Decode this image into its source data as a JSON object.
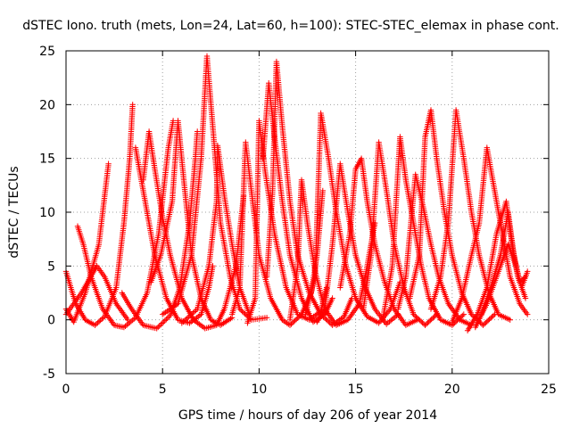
{
  "chart_data": {
    "type": "scatter",
    "title": "dSTEC Iono. truth (mets, Lon=24, Lat=60, h=100): STEC-STEC_elemax in phase cont.",
    "xlabel": "GPS time / hours of day 206 of year 2014",
    "ylabel": "dSTEC  / TECUs",
    "xlim": [
      0,
      25
    ],
    "ylim": [
      -5,
      25
    ],
    "xticks": [
      0,
      5,
      10,
      15,
      20,
      25
    ],
    "yticks": [
      -5,
      0,
      5,
      10,
      15,
      20,
      25
    ],
    "grid": true,
    "marker": "+",
    "colors": {
      "series": "#ff0000",
      "grid": "#a0a0a0",
      "axes": "#000000"
    },
    "series": [
      {
        "values": [
          [
            0.0,
            4.5
          ],
          [
            0.5,
            1.5
          ],
          [
            1.0,
            0.0
          ],
          [
            1.5,
            -0.5
          ],
          [
            2.0,
            0.3
          ],
          [
            2.6,
            3.0
          ],
          [
            3.0,
            9.0
          ],
          [
            3.3,
            15.0
          ],
          [
            3.45,
            20.0
          ]
        ]
      },
      {
        "values": [
          [
            0.0,
            1.0
          ],
          [
            0.4,
            -0.2
          ],
          [
            1.0,
            2.5
          ],
          [
            1.7,
            7.0
          ],
          [
            2.2,
            14.5
          ]
        ]
      },
      {
        "values": [
          [
            0.6,
            8.7
          ],
          [
            0.9,
            7.0
          ],
          [
            1.3,
            4.0
          ],
          [
            1.9,
            1.0
          ],
          [
            2.5,
            -0.5
          ],
          [
            3.0,
            -0.7
          ],
          [
            3.6,
            0.2
          ],
          [
            4.2,
            2.5
          ],
          [
            4.8,
            8.0
          ],
          [
            5.3,
            16.0
          ],
          [
            5.55,
            18.5
          ]
        ]
      },
      {
        "values": [
          [
            0.0,
            0.5
          ],
          [
            0.8,
            2.5
          ],
          [
            1.6,
            5.0
          ],
          [
            2.0,
            4.0
          ],
          [
            2.6,
            1.5
          ],
          [
            3.2,
            0.0
          ]
        ]
      },
      {
        "values": [
          [
            3.6,
            16.0
          ],
          [
            4.0,
            12.0
          ],
          [
            4.6,
            6.0
          ],
          [
            5.2,
            2.0
          ],
          [
            5.8,
            0.0
          ],
          [
            6.4,
            -0.3
          ],
          [
            7.0,
            0.5
          ],
          [
            7.4,
            3.0
          ],
          [
            7.6,
            5.0
          ]
        ]
      },
      {
        "values": [
          [
            2.9,
            2.5
          ],
          [
            3.4,
            1.0
          ],
          [
            4.0,
            -0.5
          ],
          [
            4.7,
            -0.8
          ],
          [
            5.4,
            0.4
          ],
          [
            5.9,
            3.0
          ],
          [
            6.4,
            9.0
          ],
          [
            6.7,
            15.0
          ],
          [
            6.8,
            17.5
          ]
        ]
      },
      {
        "values": [
          [
            4.0,
            13.0
          ],
          [
            4.3,
            17.5
          ],
          [
            4.6,
            14.0
          ],
          [
            5.0,
            9.5
          ],
          [
            5.4,
            6.0
          ],
          [
            6.0,
            2.0
          ],
          [
            6.6,
            0.0
          ],
          [
            7.2,
            -0.8
          ],
          [
            7.8,
            -0.5
          ],
          [
            8.2,
            1.0
          ],
          [
            8.8,
            5.0
          ],
          [
            9.2,
            11.5
          ]
        ]
      },
      {
        "values": [
          [
            4.4,
            3.5
          ],
          [
            4.9,
            6.0
          ],
          [
            5.5,
            11.0
          ],
          [
            5.8,
            18.5
          ],
          [
            6.1,
            13.0
          ],
          [
            6.5,
            6.0
          ],
          [
            7.0,
            2.0
          ],
          [
            7.5,
            0.0
          ],
          [
            8.0,
            -0.5
          ],
          [
            8.6,
            0.2
          ]
        ]
      },
      {
        "values": [
          [
            5.0,
            0.5
          ],
          [
            5.8,
            1.5
          ],
          [
            6.5,
            6.0
          ],
          [
            7.0,
            15.0
          ],
          [
            7.3,
            24.5
          ],
          [
            7.6,
            18.0
          ],
          [
            8.0,
            9.0
          ],
          [
            8.5,
            4.0
          ],
          [
            9.0,
            1.0
          ],
          [
            9.6,
            0.0
          ],
          [
            10.4,
            0.2
          ]
        ]
      },
      {
        "values": [
          [
            6.0,
            -0.3
          ],
          [
            6.8,
            1.0
          ],
          [
            7.4,
            5.0
          ],
          [
            7.8,
            11.0
          ],
          [
            7.85,
            16.2
          ],
          [
            8.2,
            11.5
          ],
          [
            8.6,
            7.0
          ],
          [
            9.0,
            3.0
          ],
          [
            9.5,
            0.5
          ]
        ]
      },
      {
        "values": [
          [
            8.6,
            0.5
          ],
          [
            9.0,
            3.0
          ],
          [
            9.3,
            16.5
          ],
          [
            9.6,
            12.0
          ],
          [
            10.0,
            6.0
          ],
          [
            10.6,
            2.0
          ],
          [
            11.2,
            0.0
          ],
          [
            11.6,
            -0.5
          ],
          [
            12.2,
            0.5
          ],
          [
            12.7,
            2.5
          ],
          [
            13.0,
            6.0
          ],
          [
            13.3,
            12.0
          ]
        ]
      },
      {
        "values": [
          [
            9.4,
            -0.3
          ],
          [
            9.8,
            2.0
          ],
          [
            10.0,
            18.5
          ],
          [
            10.3,
            14.0
          ],
          [
            10.8,
            8.0
          ],
          [
            11.4,
            3.0
          ],
          [
            12.0,
            0.5
          ],
          [
            12.6,
            0.0
          ],
          [
            13.2,
            0.8
          ],
          [
            13.5,
            3.0
          ]
        ]
      },
      {
        "values": [
          [
            10.2,
            15.0
          ],
          [
            10.5,
            22.0
          ],
          [
            10.8,
            17.0
          ],
          [
            11.2,
            11.0
          ],
          [
            11.6,
            6.0
          ],
          [
            12.2,
            2.0
          ],
          [
            12.8,
            -0.2
          ],
          [
            13.4,
            0.5
          ],
          [
            13.8,
            2.0
          ]
        ]
      },
      {
        "values": [
          [
            10.4,
            4.0
          ],
          [
            10.7,
            12.0
          ],
          [
            10.9,
            24.0
          ],
          [
            11.2,
            18.0
          ],
          [
            11.6,
            11.0
          ],
          [
            12.0,
            6.0
          ],
          [
            12.6,
            2.5
          ],
          [
            13.2,
            0.5
          ],
          [
            13.8,
            -0.5
          ],
          [
            14.4,
            0.3
          ],
          [
            14.8,
            2.0
          ]
        ]
      },
      {
        "values": [
          [
            11.6,
            0.0
          ],
          [
            12.0,
            5.0
          ],
          [
            12.2,
            13.0
          ],
          [
            12.5,
            9.0
          ],
          [
            12.9,
            4.5
          ],
          [
            13.4,
            1.0
          ],
          [
            14.0,
            -0.5
          ],
          [
            14.6,
            0.0
          ],
          [
            15.2,
            1.5
          ],
          [
            15.6,
            5.0
          ],
          [
            16.0,
            9.0
          ]
        ]
      },
      {
        "values": [
          [
            12.4,
            0.5
          ],
          [
            12.9,
            4.0
          ],
          [
            13.2,
            19.2
          ],
          [
            13.6,
            15.0
          ],
          [
            14.0,
            10.0
          ],
          [
            14.5,
            5.0
          ],
          [
            15.0,
            2.0
          ],
          [
            15.6,
            0.3
          ],
          [
            16.2,
            -0.3
          ],
          [
            16.8,
            1.0
          ],
          [
            17.3,
            3.5
          ]
        ]
      },
      {
        "values": [
          [
            13.0,
            -0.2
          ],
          [
            13.4,
            1.0
          ],
          [
            13.8,
            7.0
          ],
          [
            14.2,
            14.5
          ],
          [
            14.6,
            10.0
          ],
          [
            15.0,
            6.0
          ],
          [
            15.5,
            3.0
          ],
          [
            16.0,
            1.0
          ],
          [
            16.6,
            -0.4
          ],
          [
            17.2,
            0.5
          ]
        ]
      },
      {
        "values": [
          [
            14.2,
            3.0
          ],
          [
            14.7,
            8.0
          ],
          [
            15.0,
            14.0
          ],
          [
            15.3,
            15.0
          ],
          [
            15.6,
            11.0
          ],
          [
            16.0,
            7.0
          ],
          [
            16.5,
            3.5
          ],
          [
            17.0,
            1.0
          ],
          [
            17.6,
            -0.5
          ],
          [
            18.2,
            0.0
          ]
        ]
      },
      {
        "values": [
          [
            15.4,
            1.0
          ],
          [
            15.8,
            6.0
          ],
          [
            16.2,
            16.5
          ],
          [
            16.6,
            12.0
          ],
          [
            17.0,
            7.0
          ],
          [
            17.5,
            3.0
          ],
          [
            18.0,
            0.5
          ],
          [
            18.6,
            -0.5
          ],
          [
            19.2,
            0.5
          ]
        ]
      },
      {
        "values": [
          [
            16.4,
            0.0
          ],
          [
            16.9,
            5.0
          ],
          [
            17.3,
            17.0
          ],
          [
            17.6,
            13.0
          ],
          [
            18.0,
            9.0
          ],
          [
            18.4,
            5.0
          ],
          [
            18.8,
            2.0
          ],
          [
            19.4,
            0.0
          ],
          [
            20.0,
            -0.5
          ],
          [
            20.6,
            0.5
          ]
        ]
      },
      {
        "values": [
          [
            17.2,
            1.0
          ],
          [
            17.6,
            4.0
          ],
          [
            18.1,
            13.5
          ],
          [
            18.5,
            10.5
          ],
          [
            18.9,
            7.0
          ],
          [
            19.3,
            4.0
          ],
          [
            19.8,
            1.5
          ],
          [
            20.4,
            0.0
          ],
          [
            21.0,
            -0.5
          ]
        ]
      },
      {
        "values": [
          [
            17.8,
            2.0
          ],
          [
            18.3,
            6.0
          ],
          [
            18.6,
            17.0
          ],
          [
            18.9,
            19.5
          ],
          [
            19.2,
            15.0
          ],
          [
            19.6,
            10.0
          ],
          [
            20.0,
            6.0
          ],
          [
            20.5,
            2.5
          ],
          [
            21.0,
            0.5
          ],
          [
            21.6,
            -0.5
          ],
          [
            22.2,
            0.5
          ]
        ]
      },
      {
        "values": [
          [
            18.9,
            1.0
          ],
          [
            19.4,
            4.0
          ],
          [
            19.8,
            9.0
          ],
          [
            20.2,
            19.5
          ],
          [
            20.6,
            15.0
          ],
          [
            21.0,
            10.0
          ],
          [
            21.4,
            6.0
          ],
          [
            21.9,
            2.5
          ],
          [
            22.4,
            0.5
          ],
          [
            23.0,
            0.0
          ]
        ]
      },
      {
        "values": [
          [
            20.0,
            -0.2
          ],
          [
            20.5,
            2.0
          ],
          [
            21.0,
            6.0
          ],
          [
            21.4,
            9.0
          ],
          [
            21.8,
            16.0
          ],
          [
            22.2,
            12.0
          ],
          [
            22.6,
            8.0
          ],
          [
            23.0,
            4.0
          ],
          [
            23.5,
            1.5
          ],
          [
            23.9,
            0.5
          ]
        ]
      },
      {
        "values": [
          [
            20.8,
            -1.0
          ],
          [
            21.3,
            0.5
          ],
          [
            21.8,
            3.0
          ],
          [
            22.3,
            8.0
          ],
          [
            22.8,
            11.0
          ],
          [
            23.1,
            7.0
          ],
          [
            23.4,
            4.0
          ],
          [
            23.8,
            2.0
          ]
        ]
      },
      {
        "values": [
          [
            21.2,
            -0.7
          ],
          [
            21.8,
            1.5
          ],
          [
            22.4,
            4.5
          ],
          [
            22.9,
            7.0
          ],
          [
            23.3,
            5.0
          ],
          [
            23.6,
            3.0
          ],
          [
            23.9,
            4.5
          ]
        ]
      },
      {
        "values": [
          [
            21.5,
            0.5
          ],
          [
            22.0,
            3.0
          ],
          [
            22.5,
            6.0
          ],
          [
            22.9,
            10.0
          ],
          [
            23.2,
            6.0
          ],
          [
            23.5,
            3.5
          ],
          [
            23.8,
            4.0
          ]
        ]
      }
    ]
  }
}
